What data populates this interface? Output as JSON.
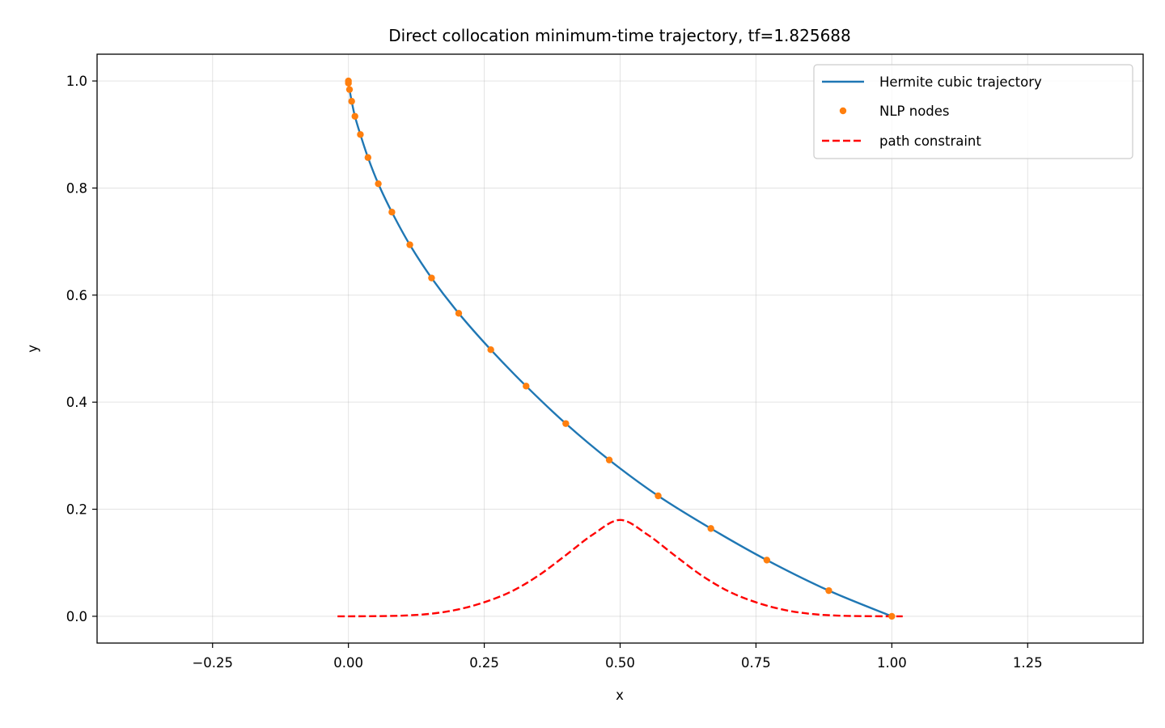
{
  "chart_data": {
    "type": "line",
    "title": "Direct collocation minimum-time trajectory, tf=1.825688",
    "xlabel": "x",
    "ylabel": "y",
    "xlim": [
      -0.4625,
      1.4625
    ],
    "ylim": [
      -0.05,
      1.05
    ],
    "xticks": [
      -0.25,
      0.0,
      0.25,
      0.5,
      0.75,
      1.0,
      1.25
    ],
    "xtick_labels": [
      "−0.25",
      "0.00",
      "0.25",
      "0.50",
      "0.75",
      "1.00",
      "1.25"
    ],
    "yticks": [
      0.0,
      0.2,
      0.4,
      0.6,
      0.8,
      1.0
    ],
    "ytick_labels": [
      "0.0",
      "0.2",
      "0.4",
      "0.6",
      "0.8",
      "1.0"
    ],
    "grid": true,
    "legend_position": "top-right",
    "series": [
      {
        "name": "Hermite cubic trajectory",
        "style": "solid-line",
        "color": "#1f77b4",
        "x": [
          0.0,
          0.0,
          0.002,
          0.006,
          0.012,
          0.022,
          0.036,
          0.055,
          0.08,
          0.113,
          0.153,
          0.203,
          0.262,
          0.327,
          0.4,
          0.48,
          0.57,
          0.667,
          0.77,
          0.884,
          1.0
        ],
        "y": [
          1.0,
          0.996,
          0.984,
          0.962,
          0.934,
          0.9,
          0.857,
          0.808,
          0.755,
          0.694,
          0.632,
          0.566,
          0.498,
          0.43,
          0.36,
          0.292,
          0.225,
          0.164,
          0.105,
          0.048,
          0.0
        ]
      },
      {
        "name": "NLP nodes",
        "style": "markers",
        "color": "#ff7f0e",
        "x": [
          0.0,
          0.0,
          0.002,
          0.006,
          0.012,
          0.022,
          0.036,
          0.055,
          0.08,
          0.113,
          0.153,
          0.203,
          0.262,
          0.327,
          0.4,
          0.48,
          0.57,
          0.667,
          0.77,
          0.884,
          1.0
        ],
        "y": [
          1.0,
          0.996,
          0.984,
          0.962,
          0.934,
          0.9,
          0.857,
          0.808,
          0.755,
          0.694,
          0.632,
          0.566,
          0.498,
          0.43,
          0.36,
          0.292,
          0.225,
          0.164,
          0.105,
          0.048,
          0.0
        ]
      },
      {
        "name": "path constraint",
        "style": "dashed-line",
        "color": "#ff0000",
        "x": [
          -0.02,
          0.0,
          0.05,
          0.1,
          0.15,
          0.2,
          0.25,
          0.3,
          0.35,
          0.4,
          0.45,
          0.5,
          0.55,
          0.6,
          0.65,
          0.7,
          0.75,
          0.8,
          0.85,
          0.9,
          0.95,
          1.0,
          1.02
        ],
        "y": [
          0.0,
          0.0,
          0.0003,
          0.0013,
          0.0046,
          0.0124,
          0.0262,
          0.0464,
          0.0763,
          0.1141,
          0.1529,
          0.18,
          0.1529,
          0.1141,
          0.0763,
          0.0464,
          0.0262,
          0.0124,
          0.0046,
          0.0013,
          0.0003,
          0.0,
          0.0
        ]
      }
    ]
  }
}
